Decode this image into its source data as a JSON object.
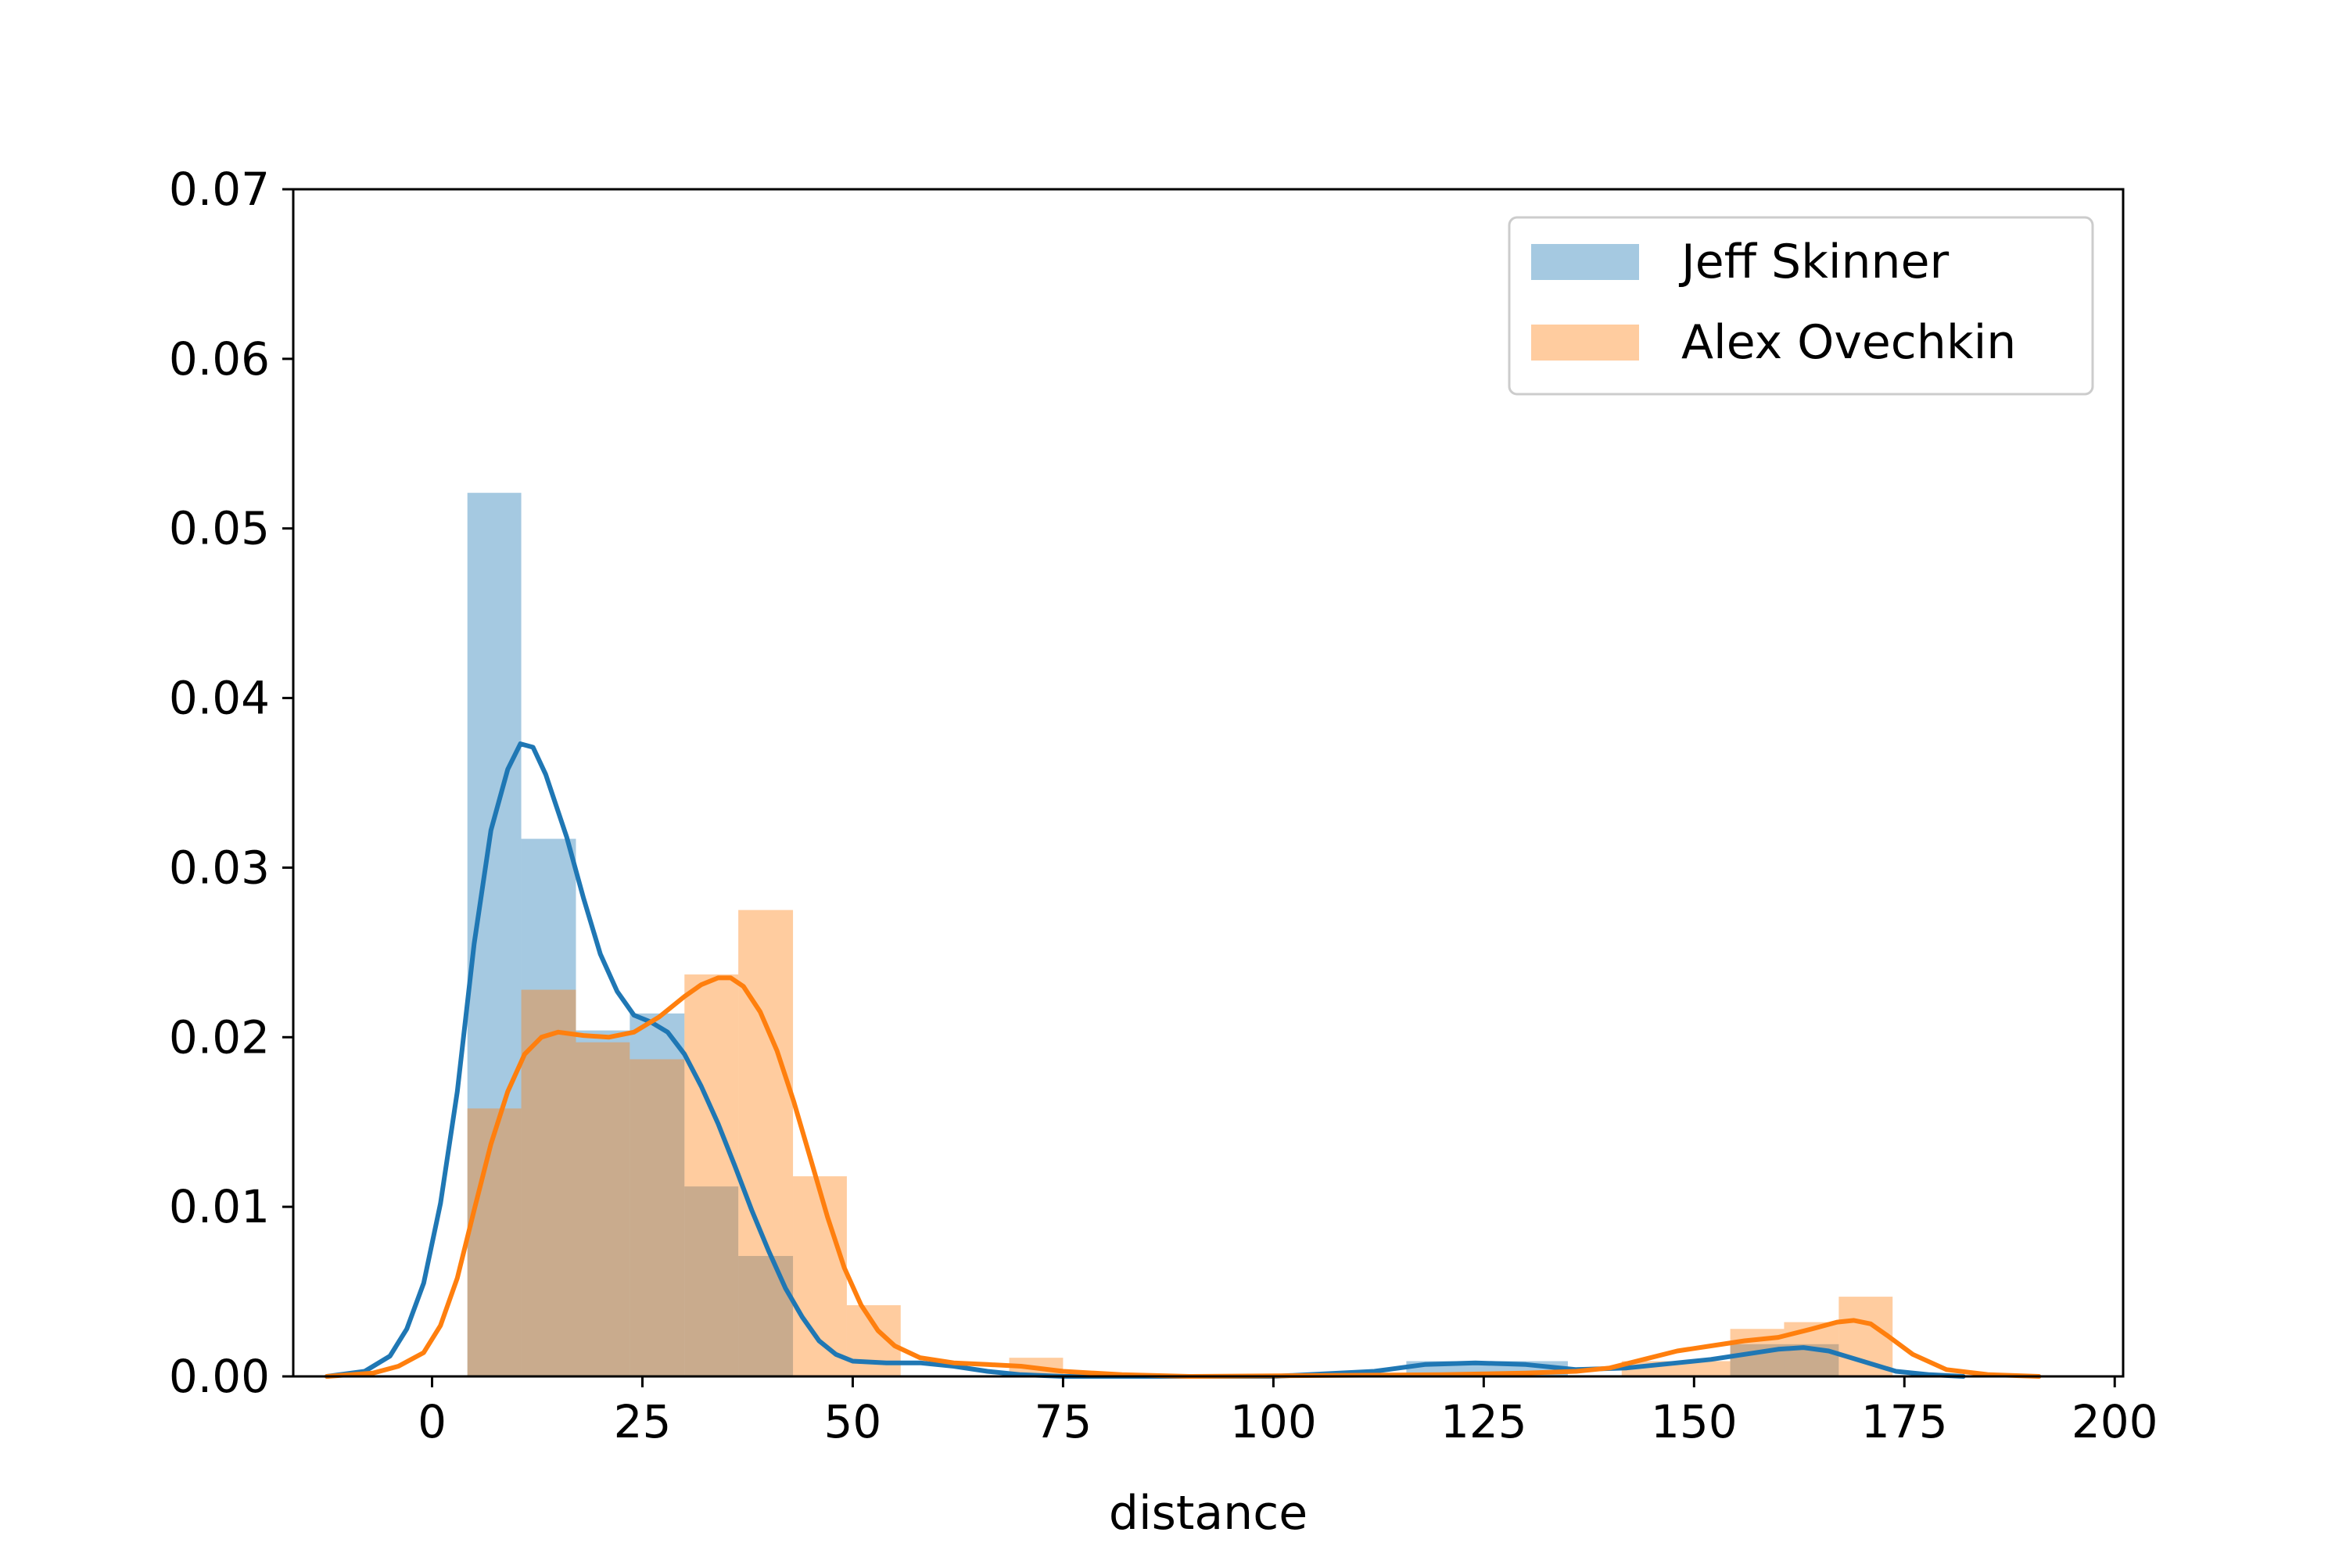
{
  "chart_data": {
    "type": "bar",
    "title": "",
    "xlabel": "distance",
    "ylabel": "",
    "xlim": [
      -16.5,
      201
    ],
    "ylim": [
      0,
      0.07
    ],
    "x_ticks": [
      0,
      25,
      50,
      75,
      100,
      125,
      150,
      175,
      200
    ],
    "x_tick_labels": [
      "0",
      "25",
      "50",
      "75",
      "100",
      "125",
      "150",
      "175",
      "200"
    ],
    "y_ticks": [
      0,
      0.01,
      0.02,
      0.03,
      0.04,
      0.05,
      0.06,
      0.07
    ],
    "y_tick_labels": [
      "0.00",
      "0.01",
      "0.02",
      "0.03",
      "0.04",
      "0.05",
      "0.06",
      "0.07"
    ],
    "grid": false,
    "legend": "upper-right",
    "series": [
      {
        "name": "Jeff Skinner",
        "hist_color": "#1f77b4",
        "kde_color": "#1f77b4",
        "hist_bins": [
          {
            "x0": 4.2,
            "x1": 10.6,
            "value": 0.0521
          },
          {
            "x0": 10.6,
            "x1": 17.1,
            "value": 0.0317
          },
          {
            "x0": 17.1,
            "x1": 23.5,
            "value": 0.0204
          },
          {
            "x0": 23.5,
            "x1": 30.0,
            "value": 0.0214
          },
          {
            "x0": 30.0,
            "x1": 36.4,
            "value": 0.0112
          },
          {
            "x0": 36.4,
            "x1": 42.9,
            "value": 0.0071
          },
          {
            "x0": 115.8,
            "x1": 135.0,
            "value": 0.0009
          },
          {
            "x0": 154.3,
            "x1": 167.2,
            "value": 0.0019
          }
        ],
        "kde": [
          [
            -12.5,
            0.0
          ],
          [
            -8,
            0.0003
          ],
          [
            -5,
            0.0012
          ],
          [
            -3,
            0.0028
          ],
          [
            -1,
            0.0055
          ],
          [
            1,
            0.0102
          ],
          [
            3,
            0.0168
          ],
          [
            5,
            0.0255
          ],
          [
            7,
            0.0322
          ],
          [
            9,
            0.0358
          ],
          [
            10.5,
            0.0373
          ],
          [
            12,
            0.0371
          ],
          [
            13.5,
            0.0355
          ],
          [
            16,
            0.0318
          ],
          [
            18,
            0.0282
          ],
          [
            20,
            0.0249
          ],
          [
            22,
            0.0227
          ],
          [
            24,
            0.0213
          ],
          [
            26,
            0.0209
          ],
          [
            28,
            0.0203
          ],
          [
            30,
            0.019
          ],
          [
            32,
            0.0171
          ],
          [
            34,
            0.0149
          ],
          [
            36,
            0.0124
          ],
          [
            38,
            0.0098
          ],
          [
            40,
            0.0074
          ],
          [
            42,
            0.0052
          ],
          [
            44,
            0.0035
          ],
          [
            46,
            0.0021
          ],
          [
            48,
            0.0013
          ],
          [
            50,
            0.0009
          ],
          [
            54,
            0.0008
          ],
          [
            58,
            0.0008
          ],
          [
            62,
            0.0006
          ],
          [
            66,
            0.0003
          ],
          [
            70,
            0.0001
          ],
          [
            75,
            0.0
          ],
          [
            100,
            0.0
          ],
          [
            112,
            0.0003
          ],
          [
            118,
            0.0007
          ],
          [
            124,
            0.0008
          ],
          [
            130,
            0.0007
          ],
          [
            136,
            0.0004
          ],
          [
            142,
            0.0005
          ],
          [
            148,
            0.0008
          ],
          [
            152,
            0.001
          ],
          [
            156,
            0.0013
          ],
          [
            160,
            0.0016
          ],
          [
            163,
            0.0017
          ],
          [
            166,
            0.0015
          ],
          [
            170,
            0.0009
          ],
          [
            174,
            0.0003
          ],
          [
            178,
            0.0001
          ],
          [
            182,
            0.0
          ]
        ]
      },
      {
        "name": "Alex Ovechkin",
        "hist_color": "#ff7f0e",
        "kde_color": "#ff7f0e",
        "hist_bins": [
          {
            "x0": 4.2,
            "x1": 10.6,
            "value": 0.0158
          },
          {
            "x0": 10.6,
            "x1": 17.1,
            "value": 0.0228
          },
          {
            "x0": 17.1,
            "x1": 23.5,
            "value": 0.0197
          },
          {
            "x0": 23.5,
            "x1": 30.0,
            "value": 0.0187
          },
          {
            "x0": 30.0,
            "x1": 36.4,
            "value": 0.0237
          },
          {
            "x0": 36.4,
            "x1": 42.9,
            "value": 0.0275
          },
          {
            "x0": 42.9,
            "x1": 49.3,
            "value": 0.0118
          },
          {
            "x0": 49.3,
            "x1": 55.7,
            "value": 0.0042
          },
          {
            "x0": 68.6,
            "x1": 75.0,
            "value": 0.0011
          },
          {
            "x0": 141.4,
            "x1": 154.3,
            "value": 0.0009
          },
          {
            "x0": 154.3,
            "x1": 160.7,
            "value": 0.0028
          },
          {
            "x0": 160.7,
            "x1": 167.2,
            "value": 0.0032
          },
          {
            "x0": 167.2,
            "x1": 173.6,
            "value": 0.0047
          }
        ],
        "kde": [
          [
            -12.5,
            0.0
          ],
          [
            -7,
            0.0002
          ],
          [
            -4,
            0.0006
          ],
          [
            -1,
            0.0014
          ],
          [
            1,
            0.003
          ],
          [
            3,
            0.0058
          ],
          [
            5,
            0.0098
          ],
          [
            7,
            0.0137
          ],
          [
            9,
            0.0168
          ],
          [
            11,
            0.019
          ],
          [
            13,
            0.02
          ],
          [
            15,
            0.0203
          ],
          [
            18,
            0.0201
          ],
          [
            21,
            0.02
          ],
          [
            24,
            0.0203
          ],
          [
            27,
            0.0212
          ],
          [
            30,
            0.0224
          ],
          [
            32,
            0.0231
          ],
          [
            34,
            0.0235
          ],
          [
            35.5,
            0.0235
          ],
          [
            37,
            0.023
          ],
          [
            39,
            0.0215
          ],
          [
            41,
            0.0192
          ],
          [
            43,
            0.0162
          ],
          [
            45,
            0.0128
          ],
          [
            47,
            0.0094
          ],
          [
            49,
            0.0064
          ],
          [
            51,
            0.0042
          ],
          [
            53,
            0.0027
          ],
          [
            55,
            0.0018
          ],
          [
            58,
            0.0011
          ],
          [
            62,
            0.0008
          ],
          [
            66,
            0.0007
          ],
          [
            70,
            0.0006
          ],
          [
            75,
            0.0003
          ],
          [
            82,
            0.0001
          ],
          [
            90,
            0.0
          ],
          [
            120,
            0.0001
          ],
          [
            130,
            0.0002
          ],
          [
            136,
            0.0003
          ],
          [
            140,
            0.0005
          ],
          [
            144,
            0.001
          ],
          [
            148,
            0.0015
          ],
          [
            152,
            0.0018
          ],
          [
            156,
            0.0021
          ],
          [
            160,
            0.0023
          ],
          [
            164,
            0.0028
          ],
          [
            167,
            0.0032
          ],
          [
            169,
            0.0033
          ],
          [
            171,
            0.0031
          ],
          [
            173,
            0.0024
          ],
          [
            176,
            0.0013
          ],
          [
            180,
            0.0004
          ],
          [
            185,
            0.0001
          ],
          [
            191,
            0.0
          ]
        ]
      }
    ]
  }
}
